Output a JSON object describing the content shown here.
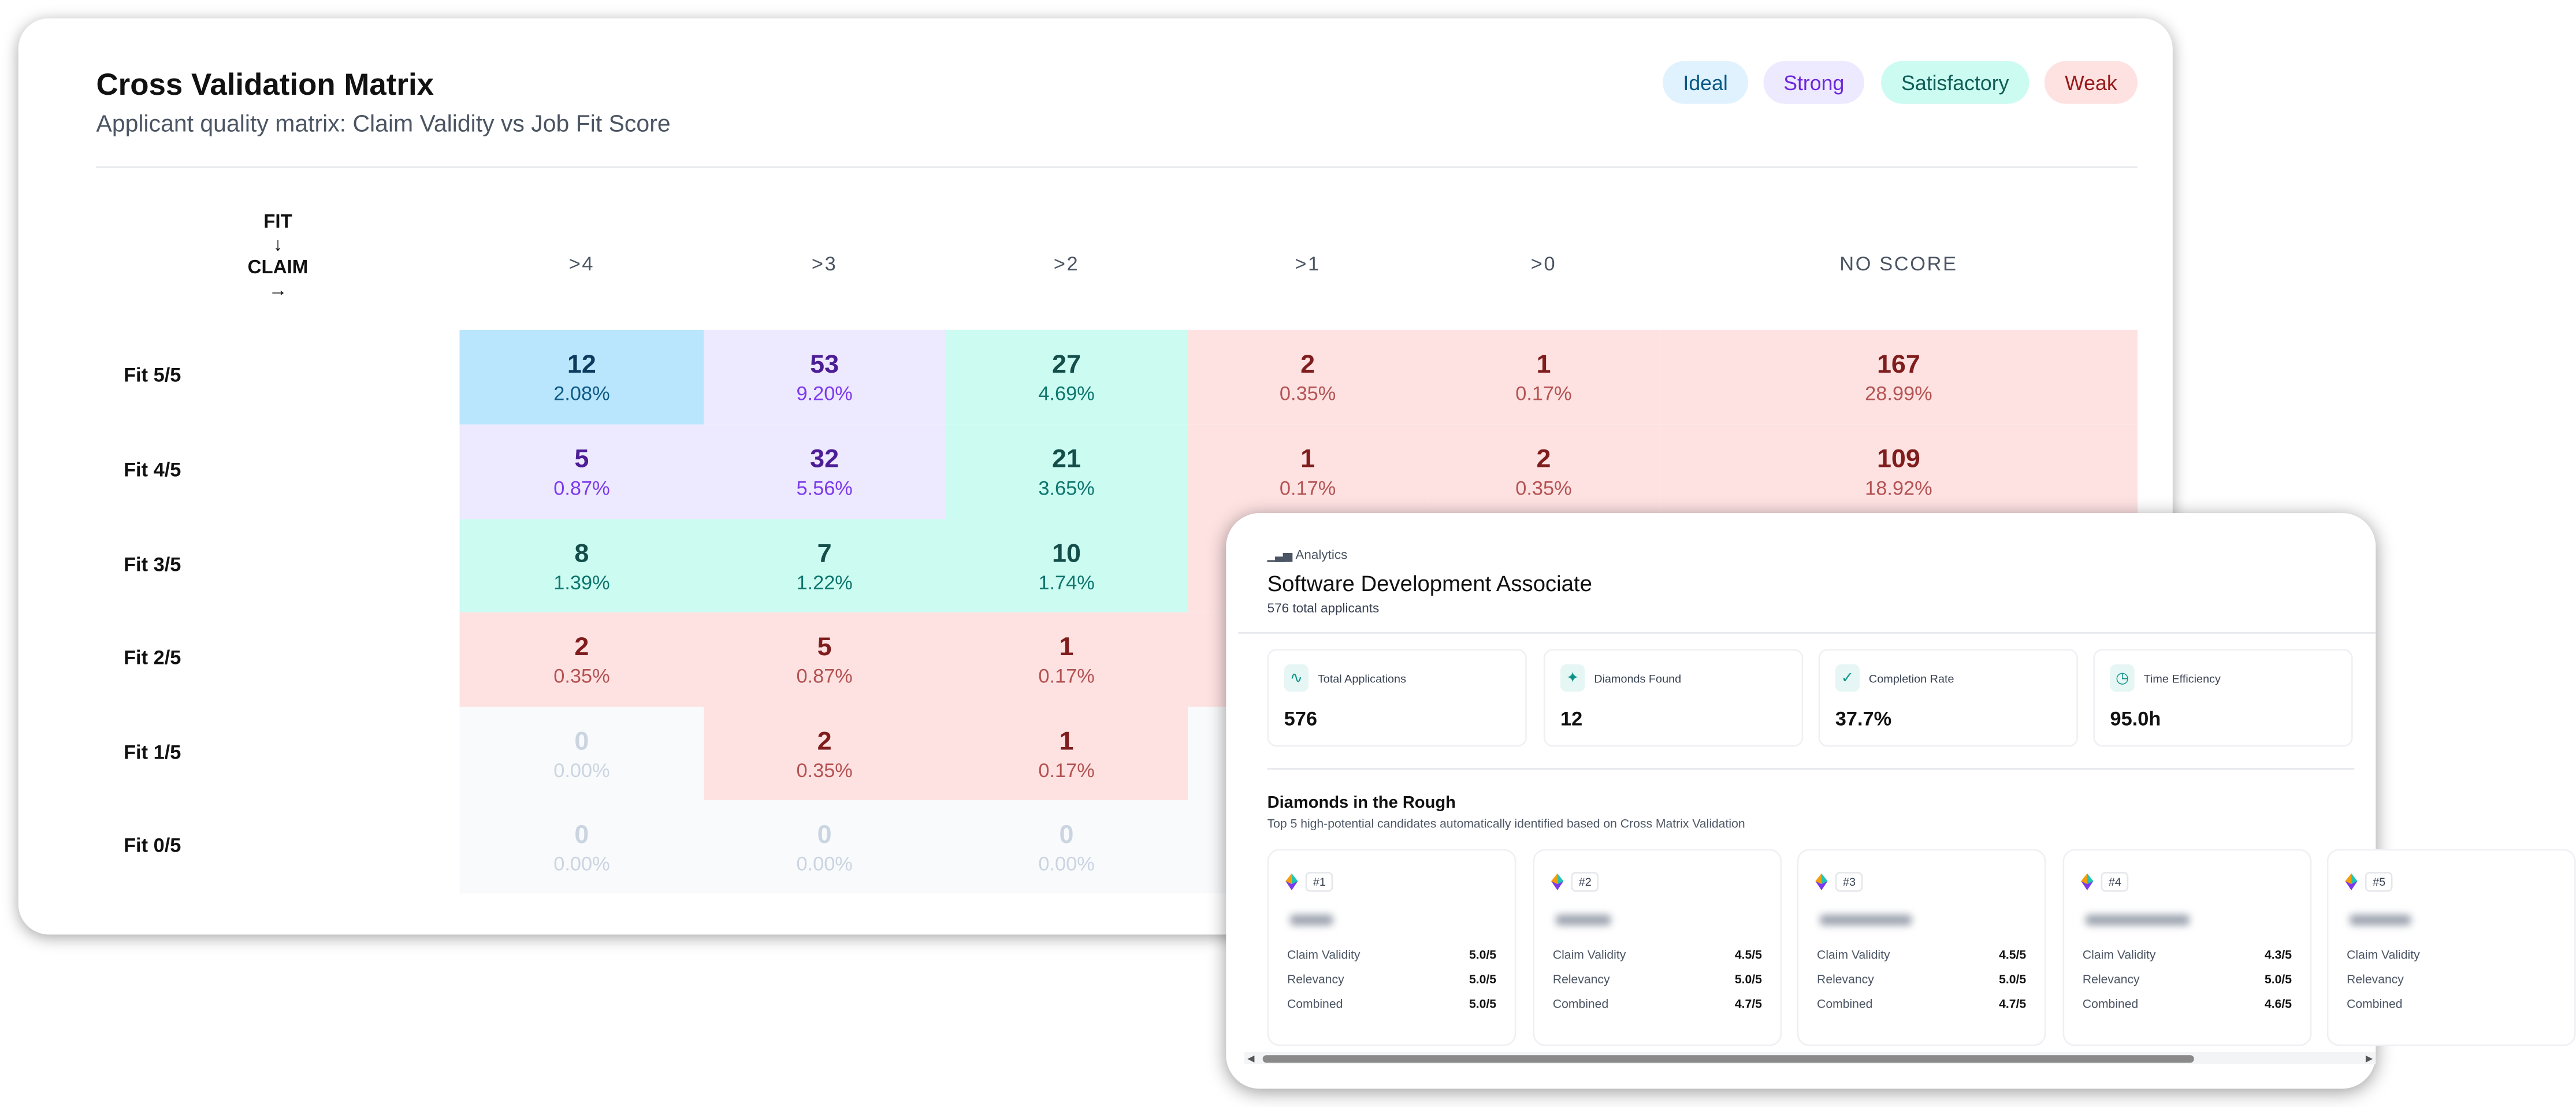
{
  "matrix": {
    "title": "Cross Validation Matrix",
    "subtitle": "Applicant quality matrix: Claim Validity vs Job Fit Score",
    "legend": [
      {
        "label": "Ideal",
        "bg": "#e0f2fe",
        "color": "#075985"
      },
      {
        "label": "Strong",
        "bg": "#ede9fe",
        "color": "#6d28d9"
      },
      {
        "label": "Satisfactory",
        "bg": "#ccfbf1",
        "color": "#0f5e57"
      },
      {
        "label": "Weak",
        "bg": "#fee2e2",
        "color": "#991b1b"
      }
    ],
    "corner": {
      "fit": "FIT",
      "down_arrow": "↓",
      "claim": "CLAIM",
      "right_arrow": "→"
    },
    "columns": [
      ">4",
      ">3",
      ">2",
      ">1",
      ">0",
      "NO SCORE"
    ],
    "rows": [
      {
        "label": "Fit 5/5",
        "cells": [
          {
            "count": "12",
            "pct": "2.08%",
            "cat": "ideal"
          },
          {
            "count": "53",
            "pct": "9.20%",
            "cat": "strong"
          },
          {
            "count": "27",
            "pct": "4.69%",
            "cat": "sat"
          },
          {
            "count": "2",
            "pct": "0.35%",
            "cat": "weak"
          },
          {
            "count": "1",
            "pct": "0.17%",
            "cat": "weak"
          },
          {
            "count": "167",
            "pct": "28.99%",
            "cat": "weak"
          }
        ]
      },
      {
        "label": "Fit 4/5",
        "cells": [
          {
            "count": "5",
            "pct": "0.87%",
            "cat": "strong"
          },
          {
            "count": "32",
            "pct": "5.56%",
            "cat": "strong"
          },
          {
            "count": "21",
            "pct": "3.65%",
            "cat": "sat"
          },
          {
            "count": "1",
            "pct": "0.17%",
            "cat": "weak"
          },
          {
            "count": "2",
            "pct": "0.35%",
            "cat": "weak"
          },
          {
            "count": "109",
            "pct": "18.92%",
            "cat": "weak"
          }
        ]
      },
      {
        "label": "Fit 3/5",
        "cells": [
          {
            "count": "8",
            "pct": "1.39%",
            "cat": "sat"
          },
          {
            "count": "7",
            "pct": "1.22%",
            "cat": "sat"
          },
          {
            "count": "10",
            "pct": "1.74%",
            "cat": "sat"
          },
          {
            "cat": "weak"
          },
          {
            "cat": "weak"
          },
          {
            "cat": "weak"
          }
        ]
      },
      {
        "label": "Fit 2/5",
        "cells": [
          {
            "count": "2",
            "pct": "0.35%",
            "cat": "weak"
          },
          {
            "count": "5",
            "pct": "0.87%",
            "cat": "weak"
          },
          {
            "count": "1",
            "pct": "0.17%",
            "cat": "weak"
          },
          {
            "cat": "weak"
          },
          {
            "cat": "weak"
          },
          {
            "cat": "weak"
          }
        ]
      },
      {
        "label": "Fit 1/5",
        "cells": [
          {
            "count": "0",
            "pct": "0.00%",
            "cat": "empty"
          },
          {
            "count": "2",
            "pct": "0.35%",
            "cat": "weak"
          },
          {
            "count": "1",
            "pct": "0.17%",
            "cat": "weak"
          },
          {
            "cat": "empty"
          },
          {
            "cat": "empty"
          },
          {
            "cat": "empty"
          }
        ]
      },
      {
        "label": "Fit 0/5",
        "cells": [
          {
            "count": "0",
            "pct": "0.00%",
            "cat": "empty"
          },
          {
            "count": "0",
            "pct": "0.00%",
            "cat": "empty"
          },
          {
            "count": "0",
            "pct": "0.00%",
            "cat": "empty"
          },
          {
            "cat": "empty"
          },
          {
            "cat": "empty"
          },
          {
            "cat": "empty"
          }
        ]
      }
    ]
  },
  "analytics": {
    "section_label": "Analytics",
    "section_icon": "bar-chart-icon",
    "job_title": "Software Development Associate",
    "applicants": "576 total applicants",
    "stats": [
      {
        "label": "Total Applications",
        "value": "576",
        "icon": "activity-icon",
        "glyph": "∿"
      },
      {
        "label": "Diamonds Found",
        "value": "12",
        "icon": "sparkles-icon",
        "glyph": "✦"
      },
      {
        "label": "Completion Rate",
        "value": "37.7%",
        "icon": "check-circle-icon",
        "glyph": "✓"
      },
      {
        "label": "Time Efficiency",
        "value": "95.0h",
        "icon": "clock-icon",
        "glyph": "◷"
      }
    ],
    "diamonds_title": "Diamonds in the Rough",
    "diamonds_subtitle": "Top 5 high-potential candidates automatically identified based on Cross Matrix Validation",
    "metric_labels": {
      "claim": "Claim Validity",
      "relevancy": "Relevancy",
      "combined": "Combined"
    },
    "candidates": [
      {
        "rank": "#1",
        "claim": "5.0/5",
        "relevancy": "5.0/5",
        "combined": "5.0/5"
      },
      {
        "rank": "#2",
        "claim": "4.5/5",
        "relevancy": "5.0/5",
        "combined": "4.7/5"
      },
      {
        "rank": "#3",
        "claim": "4.5/5",
        "relevancy": "5.0/5",
        "combined": "4.7/5"
      },
      {
        "rank": "#4",
        "claim": "4.3/5",
        "relevancy": "5.0/5",
        "combined": "4.6/5"
      },
      {
        "rank": "#5",
        "claim": "",
        "relevancy": "",
        "combined": ""
      }
    ]
  }
}
